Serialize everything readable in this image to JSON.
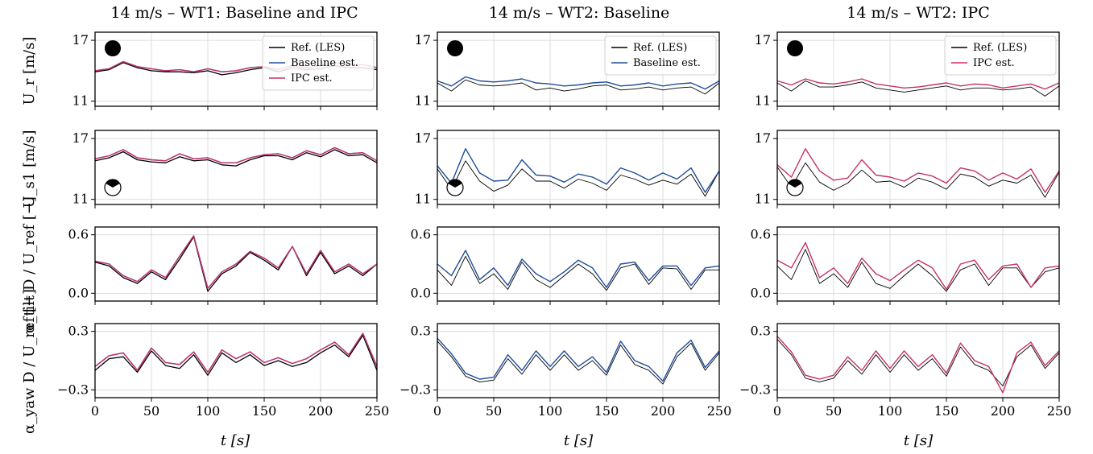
{
  "colors": {
    "ref": "#000000",
    "baseline": "#1f4e9c",
    "ipc": "#c8306a",
    "grid": "#dcdcdc"
  },
  "columns": [
    {
      "title": "14 m/s – WT1: Baseline and IPC",
      "series": [
        "ref",
        "baseline",
        "ipc"
      ]
    },
    {
      "title": "14 m/s – WT2: Baseline",
      "series": [
        "ref",
        "baseline"
      ]
    },
    {
      "title": "14 m/s – WT2: IPC",
      "series": [
        "ref",
        "ipc"
      ]
    }
  ],
  "legends": [
    {
      "entries": [
        {
          "key": "ref",
          "label": "Ref. (LES)"
        },
        {
          "key": "baseline",
          "label": "Baseline est."
        },
        {
          "key": "ipc",
          "label": "IPC est."
        }
      ]
    },
    {
      "entries": [
        {
          "key": "ref",
          "label": "Ref. (LES)"
        },
        {
          "key": "baseline",
          "label": "Baseline est."
        }
      ]
    },
    {
      "entries": [
        {
          "key": "ref",
          "label": "Ref. (LES)"
        },
        {
          "key": "ipc",
          "label": "IPC est."
        }
      ]
    }
  ],
  "rows": [
    {
      "ylabel": "U_r [m/s]",
      "icon": "rotor-disc-icon",
      "yticks": [
        "17",
        "11"
      ]
    },
    {
      "ylabel": "U_s1 [m/s]",
      "icon": "rotor-sector-icon",
      "yticks": [
        "17",
        "11"
      ]
    },
    {
      "ylabel": "α_tilt D / U_ref [−]",
      "icon": "",
      "yticks": [
        "0.6",
        "0.0"
      ]
    },
    {
      "ylabel": "α_yaw D / U_ref [−]",
      "icon": "",
      "yticks": [
        "0.3",
        "−0.3"
      ]
    }
  ],
  "xaxis": {
    "label": "t [s]",
    "ticks": [
      "0",
      "50",
      "100",
      "150",
      "200",
      "250"
    ]
  },
  "chart_data": {
    "type": "line",
    "xlim": [
      0,
      250
    ],
    "x": [
      0,
      12.5,
      25,
      37.5,
      50,
      62.5,
      75,
      87.5,
      100,
      112.5,
      125,
      137.5,
      150,
      162.5,
      175,
      187.5,
      200,
      212.5,
      225,
      237.5,
      250
    ],
    "ylims": [
      [
        10.5,
        17.8
      ],
      [
        10.5,
        17.8
      ],
      [
        -0.08,
        0.68
      ],
      [
        -0.38,
        0.38
      ]
    ],
    "panels": [
      {
        "row": 0,
        "col": 0,
        "series": {
          "ref": [
            13.9,
            14.1,
            14.8,
            14.3,
            14.0,
            13.9,
            13.9,
            13.8,
            14.0,
            13.6,
            13.8,
            14.1,
            14.3,
            13.9,
            14.3,
            14.1,
            14.2,
            14.5,
            14.3,
            14.3,
            14.1
          ],
          "baseline": [
            14.0,
            14.2,
            14.9,
            14.4,
            14.2,
            14.0,
            14.1,
            13.9,
            14.2,
            13.9,
            14.0,
            14.3,
            14.4,
            14.1,
            14.5,
            14.3,
            14.5,
            14.8,
            14.6,
            14.6,
            14.3
          ],
          "ipc": [
            14.0,
            14.2,
            14.9,
            14.4,
            14.2,
            14.0,
            14.1,
            13.9,
            14.2,
            13.9,
            14.0,
            14.3,
            14.4,
            14.1,
            14.5,
            14.3,
            14.5,
            14.8,
            14.6,
            14.6,
            14.3
          ]
        }
      },
      {
        "row": 0,
        "col": 1,
        "series": {
          "ref": [
            12.8,
            12.0,
            13.1,
            12.6,
            12.5,
            12.6,
            12.8,
            12.1,
            12.3,
            12.0,
            12.2,
            12.5,
            12.6,
            12.1,
            12.2,
            12.4,
            12.1,
            12.3,
            12.4,
            11.7,
            12.8
          ],
          "baseline": [
            13.0,
            12.5,
            13.4,
            13.0,
            12.9,
            13.0,
            13.2,
            12.8,
            12.7,
            12.5,
            12.6,
            12.8,
            12.9,
            12.5,
            12.6,
            12.8,
            12.5,
            12.7,
            12.8,
            12.2,
            13.0
          ]
        }
      },
      {
        "row": 0,
        "col": 2,
        "series": {
          "ref": [
            12.8,
            12.0,
            13.0,
            12.4,
            12.4,
            12.6,
            12.9,
            12.3,
            12.1,
            11.9,
            12.1,
            12.3,
            12.5,
            12.1,
            12.3,
            12.3,
            12.1,
            12.2,
            12.4,
            11.5,
            12.5
          ],
          "ipc": [
            13.0,
            12.6,
            13.2,
            12.8,
            12.7,
            12.9,
            13.2,
            12.7,
            12.5,
            12.3,
            12.4,
            12.6,
            12.8,
            12.5,
            12.7,
            12.6,
            12.3,
            12.5,
            12.7,
            12.2,
            12.8
          ]
        }
      },
      {
        "row": 1,
        "col": 0,
        "series": {
          "ref": [
            14.8,
            15.1,
            15.7,
            14.9,
            14.7,
            14.6,
            15.2,
            14.8,
            14.9,
            14.4,
            14.3,
            14.9,
            15.3,
            15.3,
            14.9,
            15.6,
            15.2,
            15.9,
            15.3,
            15.4,
            14.6
          ],
          "baseline": [
            15.0,
            15.3,
            15.9,
            15.1,
            14.9,
            14.8,
            15.5,
            15.0,
            15.1,
            14.6,
            14.6,
            15.1,
            15.4,
            15.5,
            15.1,
            15.8,
            15.4,
            16.1,
            15.5,
            15.6,
            14.8
          ],
          "ipc": [
            15.0,
            15.3,
            15.9,
            15.1,
            14.9,
            14.8,
            15.5,
            15.0,
            15.1,
            14.6,
            14.6,
            15.1,
            15.4,
            15.5,
            15.1,
            15.8,
            15.4,
            16.1,
            15.5,
            15.6,
            14.8
          ]
        }
      },
      {
        "row": 1,
        "col": 1,
        "series": {
          "ref": [
            14.0,
            12.0,
            14.8,
            12.8,
            11.8,
            12.4,
            14.0,
            12.8,
            12.8,
            12.1,
            13.0,
            12.6,
            11.9,
            13.4,
            13.0,
            12.4,
            12.9,
            12.5,
            13.5,
            11.3,
            13.8
          ],
          "baseline": [
            14.3,
            12.6,
            16.0,
            13.6,
            12.8,
            12.9,
            14.9,
            13.4,
            13.3,
            12.7,
            13.5,
            13.2,
            12.5,
            14.1,
            13.6,
            12.9,
            13.6,
            13.0,
            14.1,
            11.7,
            13.8
          ]
        }
      },
      {
        "row": 1,
        "col": 2,
        "series": {
          "ref": [
            14.2,
            12.2,
            14.6,
            12.7,
            11.9,
            12.6,
            13.9,
            12.7,
            12.8,
            12.2,
            13.1,
            12.7,
            12.0,
            13.5,
            13.2,
            12.3,
            12.9,
            12.6,
            13.4,
            11.2,
            13.7
          ],
          "ipc": [
            14.4,
            13.2,
            16.0,
            13.8,
            12.9,
            13.1,
            14.9,
            13.4,
            13.2,
            12.8,
            13.6,
            13.3,
            12.6,
            14.1,
            13.8,
            12.9,
            13.6,
            13.0,
            14.0,
            11.7,
            13.8
          ]
        }
      },
      {
        "row": 2,
        "col": 0,
        "series": {
          "ref": [
            0.32,
            0.28,
            0.16,
            0.1,
            0.22,
            0.14,
            0.35,
            0.58,
            0.02,
            0.2,
            0.28,
            0.42,
            0.34,
            0.24,
            0.48,
            0.18,
            0.42,
            0.2,
            0.28,
            0.18,
            0.3
          ],
          "baseline": [
            0.33,
            0.3,
            0.18,
            0.12,
            0.24,
            0.16,
            0.38,
            0.59,
            0.05,
            0.22,
            0.3,
            0.43,
            0.36,
            0.26,
            0.48,
            0.2,
            0.44,
            0.22,
            0.3,
            0.2,
            0.3
          ],
          "ipc": [
            0.33,
            0.3,
            0.18,
            0.12,
            0.24,
            0.16,
            0.38,
            0.59,
            0.05,
            0.22,
            0.3,
            0.43,
            0.36,
            0.26,
            0.48,
            0.2,
            0.44,
            0.22,
            0.3,
            0.2,
            0.3
          ]
        }
      },
      {
        "row": 2,
        "col": 1,
        "series": {
          "ref": [
            0.24,
            0.08,
            0.38,
            0.1,
            0.2,
            0.04,
            0.32,
            0.14,
            0.06,
            0.18,
            0.3,
            0.2,
            0.03,
            0.26,
            0.3,
            0.09,
            0.26,
            0.25,
            0.04,
            0.24,
            0.24
          ],
          "baseline": [
            0.3,
            0.18,
            0.44,
            0.14,
            0.26,
            0.08,
            0.35,
            0.2,
            0.12,
            0.22,
            0.34,
            0.26,
            0.06,
            0.3,
            0.32,
            0.13,
            0.28,
            0.28,
            0.08,
            0.26,
            0.28
          ]
        }
      },
      {
        "row": 2,
        "col": 2,
        "series": {
          "ref": [
            0.28,
            0.14,
            0.45,
            0.1,
            0.2,
            0.06,
            0.32,
            0.1,
            0.05,
            0.18,
            0.3,
            0.18,
            0.02,
            0.24,
            0.3,
            0.08,
            0.26,
            0.26,
            0.06,
            0.22,
            0.26
          ],
          "ipc": [
            0.34,
            0.26,
            0.52,
            0.16,
            0.26,
            0.1,
            0.36,
            0.2,
            0.13,
            0.24,
            0.34,
            0.26,
            0.04,
            0.3,
            0.34,
            0.14,
            0.28,
            0.3,
            0.06,
            0.26,
            0.28
          ]
        }
      },
      {
        "row": 3,
        "col": 0,
        "series": {
          "ref": [
            -0.1,
            0.02,
            0.04,
            -0.12,
            0.1,
            -0.05,
            -0.08,
            0.06,
            -0.15,
            0.08,
            -0.02,
            0.06,
            -0.05,
            0.0,
            -0.06,
            -0.02,
            0.08,
            0.16,
            0.04,
            0.26,
            -0.1
          ],
          "baseline": [
            -0.06,
            0.05,
            0.08,
            -0.1,
            0.13,
            -0.02,
            -0.04,
            0.09,
            -0.12,
            0.11,
            0.02,
            0.09,
            -0.02,
            0.03,
            -0.03,
            0.02,
            0.11,
            0.19,
            0.06,
            0.28,
            -0.06
          ],
          "ipc": [
            -0.06,
            0.05,
            0.08,
            -0.1,
            0.13,
            -0.02,
            -0.04,
            0.09,
            -0.12,
            0.11,
            0.02,
            0.09,
            -0.02,
            0.03,
            -0.03,
            0.02,
            0.11,
            0.19,
            0.06,
            0.28,
            -0.06
          ]
        }
      },
      {
        "row": 3,
        "col": 1,
        "series": {
          "ref": [
            0.2,
            0.04,
            -0.16,
            -0.22,
            -0.2,
            0.02,
            -0.14,
            0.06,
            -0.1,
            0.06,
            -0.1,
            0.0,
            -0.15,
            0.16,
            -0.04,
            -0.1,
            -0.24,
            0.04,
            0.18,
            -0.1,
            0.08
          ],
          "baseline": [
            0.23,
            0.07,
            -0.13,
            -0.19,
            -0.17,
            0.06,
            -0.1,
            0.1,
            -0.06,
            0.1,
            -0.06,
            0.04,
            -0.12,
            0.2,
            0.0,
            -0.06,
            -0.21,
            0.08,
            0.21,
            -0.07,
            0.1
          ]
        }
      },
      {
        "row": 3,
        "col": 2,
        "series": {
          "ref": [
            0.22,
            0.06,
            -0.18,
            -0.22,
            -0.18,
            0.0,
            -0.14,
            0.06,
            -0.12,
            0.06,
            -0.1,
            0.02,
            -0.16,
            0.14,
            -0.04,
            -0.1,
            -0.26,
            0.04,
            0.16,
            -0.08,
            0.08
          ],
          "ipc": [
            0.25,
            0.09,
            -0.15,
            -0.19,
            -0.15,
            0.04,
            -0.1,
            0.1,
            -0.08,
            0.1,
            -0.06,
            0.06,
            -0.13,
            0.18,
            0.0,
            -0.06,
            -0.33,
            0.08,
            0.19,
            -0.05,
            0.1
          ]
        }
      }
    ]
  }
}
